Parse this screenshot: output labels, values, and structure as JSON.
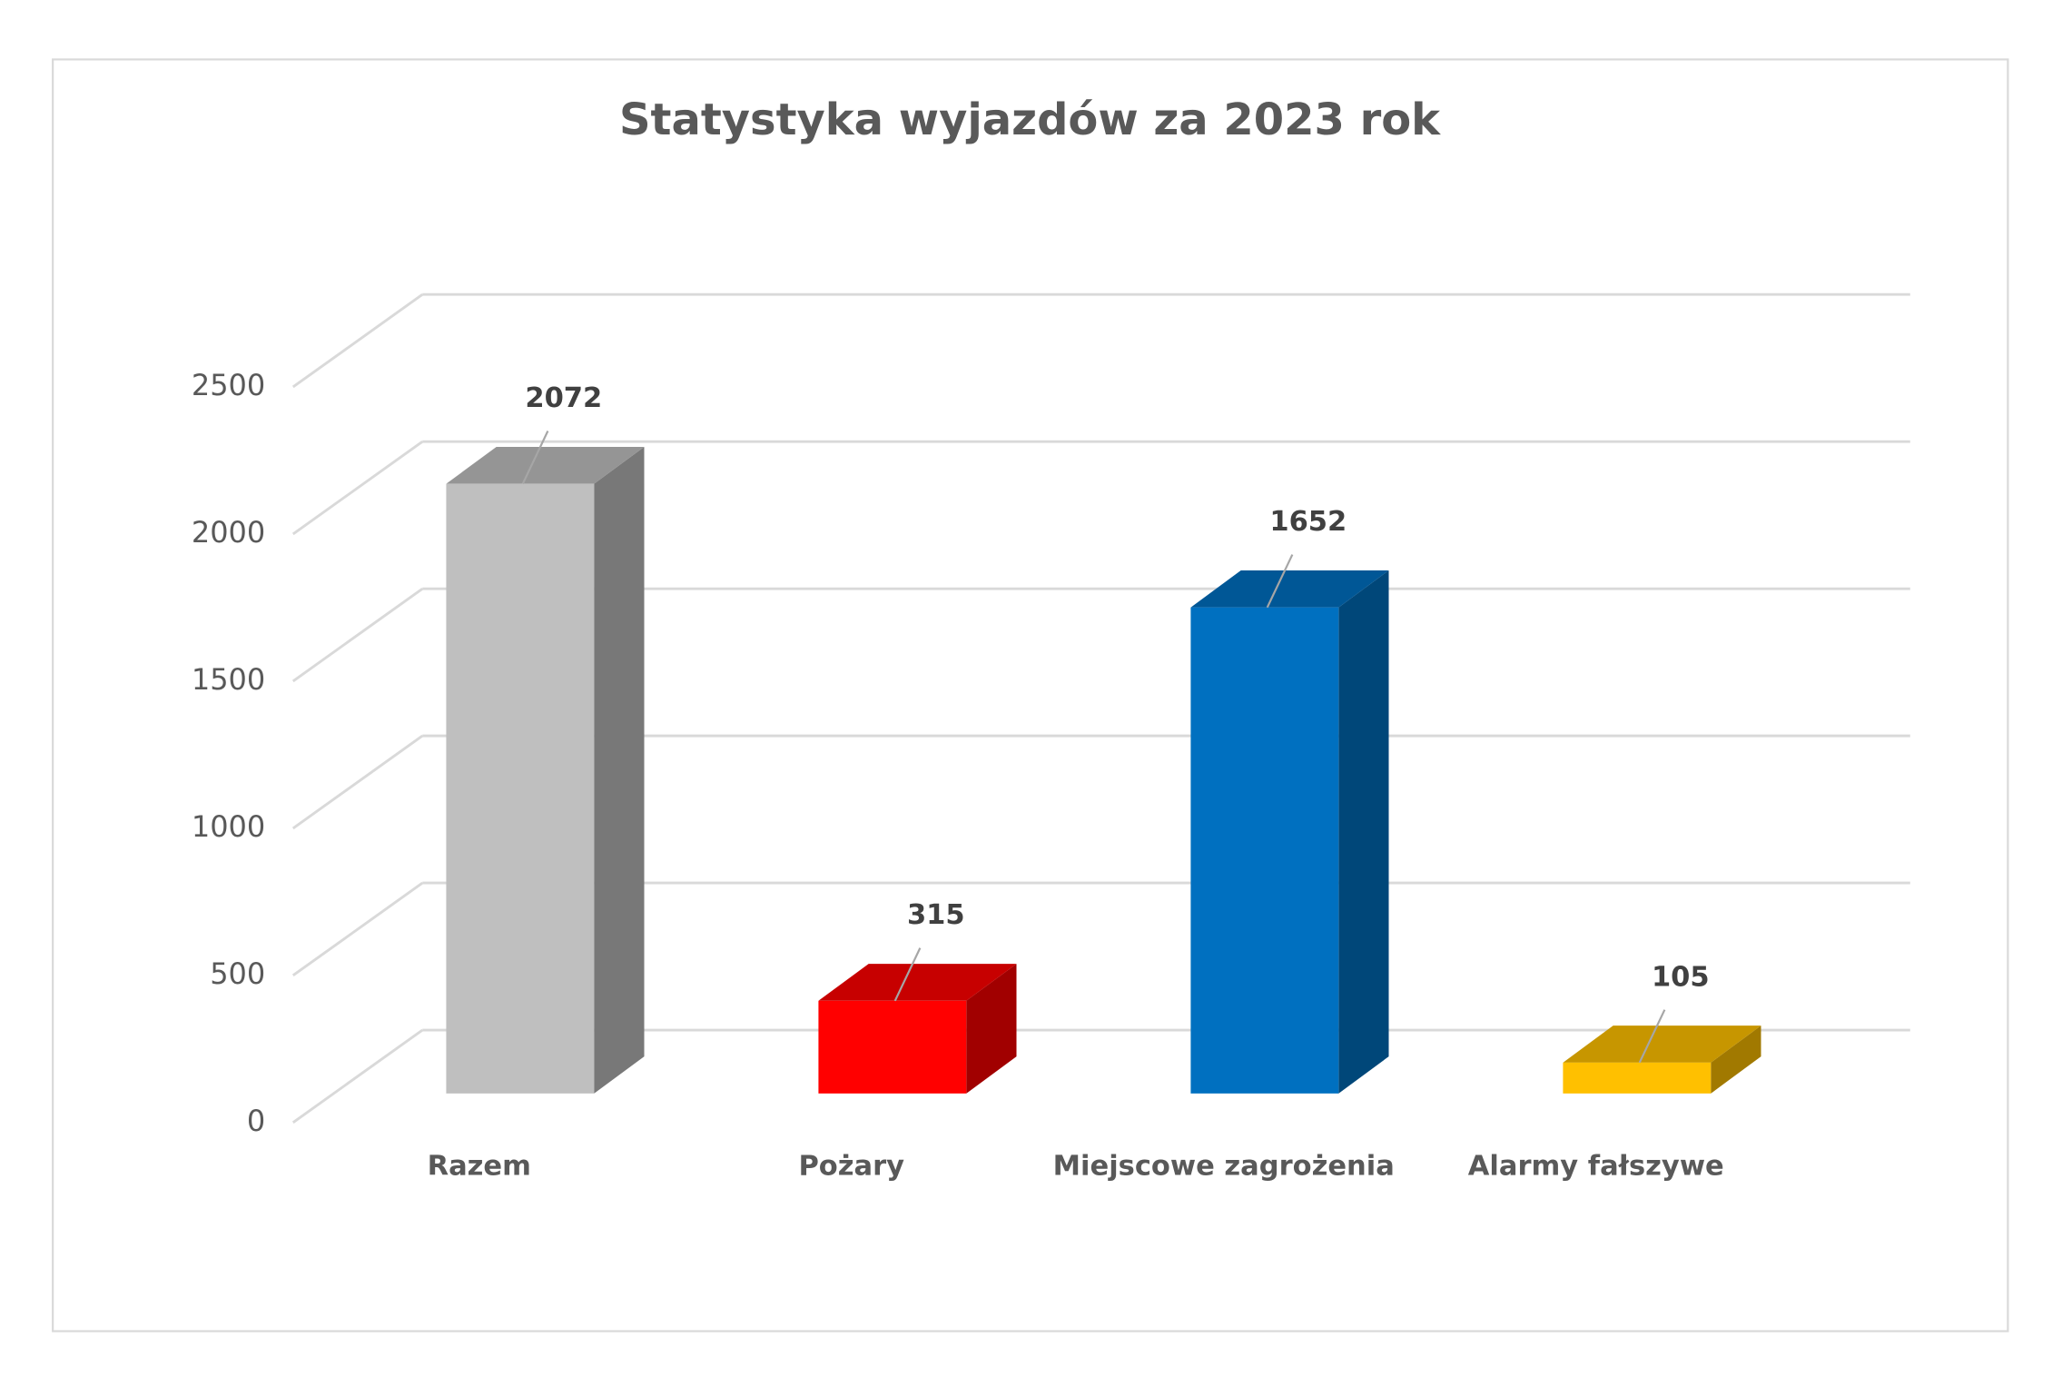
{
  "chart_data": {
    "type": "bar3d",
    "title": "Statystyka wyjazdów za 2023 rok",
    "categories": [
      "Razem",
      "Pożary",
      "Miejscowe zagrożenia",
      "Alarmy fałszywe"
    ],
    "values": [
      2072,
      315,
      1652,
      105
    ],
    "colors": [
      "#bfbfbf",
      "#ff0000",
      "#0070c0",
      "#ffc000"
    ],
    "ylim": [
      0,
      2500
    ],
    "yticks": [
      0,
      500,
      1000,
      1500,
      2000,
      2500
    ],
    "grid": true
  }
}
